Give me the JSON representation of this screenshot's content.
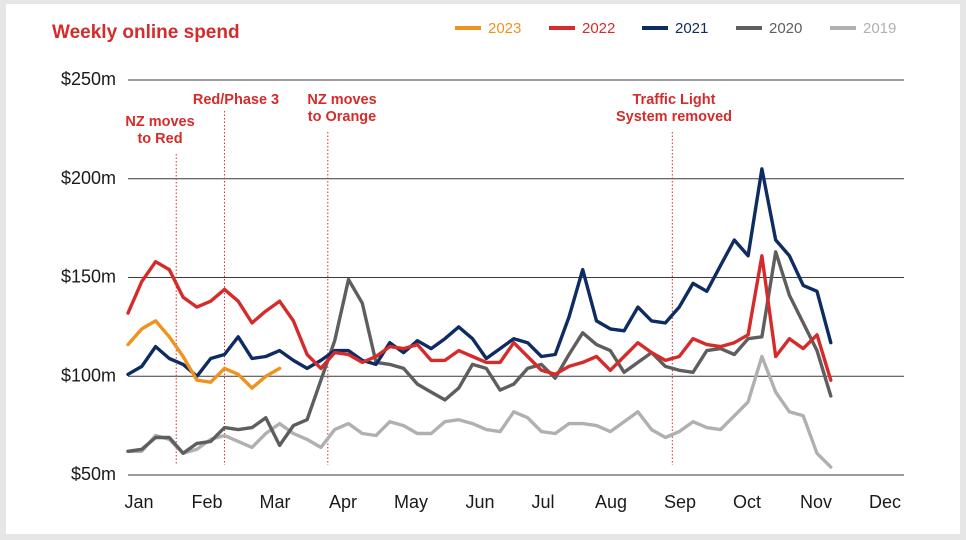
{
  "chart_data": {
    "type": "line",
    "title": "Weekly online spend",
    "ylabel": "",
    "xlabel": "",
    "ylim": [
      50,
      250
    ],
    "yticks": [
      {
        "value": 250,
        "label": "$250m"
      },
      {
        "value": 200,
        "label": "$200m"
      },
      {
        "value": 150,
        "label": "$150m"
      },
      {
        "value": 100,
        "label": "$100m"
      },
      {
        "value": 50,
        "label": "$50m"
      }
    ],
    "xlim": [
      1,
      52
    ],
    "xticks": [
      {
        "week": 1,
        "label": "Jan"
      },
      {
        "week": 6,
        "label": "Feb"
      },
      {
        "week": 11,
        "label": "Mar"
      },
      {
        "week": 16,
        "label": "Apr"
      },
      {
        "week": 21,
        "label": "May"
      },
      {
        "week": 26,
        "label": "Jun"
      },
      {
        "week": 31,
        "label": "Jul"
      },
      {
        "week": 36,
        "label": "Aug"
      },
      {
        "week": 41,
        "label": "Sep"
      },
      {
        "week": 46,
        "label": "Oct"
      },
      {
        "week": 51,
        "label": "Nov"
      },
      {
        "week": 56,
        "label": "Dec"
      }
    ],
    "grid": true,
    "legend_position": "top-right",
    "series": [
      {
        "name": "2023",
        "color": "#f0921e",
        "values": [
          116,
          124,
          128,
          120,
          110,
          98,
          97,
          104,
          101,
          94,
          100,
          104
        ]
      },
      {
        "name": "2022",
        "color": "#d52b2b",
        "values": [
          132,
          148,
          158,
          154,
          140,
          135,
          138,
          144,
          138,
          127,
          133,
          138,
          128,
          111,
          104,
          112,
          111,
          107,
          110,
          115,
          114,
          116,
          108,
          108,
          113,
          110,
          107,
          107,
          117,
          110,
          103,
          101,
          105,
          107,
          110,
          103,
          110,
          117,
          112,
          108,
          110,
          119,
          116,
          115,
          117,
          121,
          161,
          110,
          119,
          114,
          121,
          98
        ]
      },
      {
        "name": "2021",
        "color": "#0f2c62",
        "values": [
          101,
          105,
          115,
          109,
          106,
          100,
          109,
          111,
          120,
          109,
          110,
          113,
          108,
          104,
          108,
          113,
          113,
          108,
          106,
          117,
          112,
          118,
          114,
          119,
          125,
          119,
          109,
          114,
          119,
          117,
          110,
          111,
          130,
          154,
          128,
          124,
          123,
          135,
          128,
          127,
          135,
          147,
          143,
          156,
          169,
          161,
          205,
          169,
          161,
          146,
          143,
          117
        ]
      },
      {
        "name": "2020",
        "color": "#5e5e5e",
        "values": [
          62,
          63,
          69,
          69,
          61,
          66,
          67,
          74,
          73,
          74,
          79,
          65,
          75,
          78,
          98,
          118,
          149,
          137,
          107,
          106,
          104,
          96,
          92,
          88,
          94,
          106,
          104,
          93,
          96,
          104,
          106,
          99,
          111,
          122,
          116,
          113,
          102,
          107,
          112,
          105,
          103,
          102,
          113,
          114,
          111,
          119,
          120,
          163,
          141,
          127,
          113,
          90
        ]
      },
      {
        "name": "2019",
        "color": "#b0b0b0",
        "values": [
          62,
          62,
          70,
          68,
          61,
          63,
          68,
          70,
          67,
          64,
          71,
          76,
          71,
          68,
          64,
          73,
          76,
          71,
          70,
          77,
          75,
          71,
          71,
          77,
          78,
          76,
          73,
          72,
          82,
          79,
          72,
          71,
          76,
          76,
          75,
          72,
          77,
          82,
          73,
          69,
          72,
          77,
          74,
          73,
          80,
          87,
          110,
          92,
          82,
          80,
          61,
          54
        ]
      }
    ],
    "annotations": [
      {
        "lines": [
          "NZ moves",
          "to Red"
        ],
        "week": 4.5
      },
      {
        "lines": [
          "Red/Phase 3"
        ],
        "week": 8
      },
      {
        "lines": [
          "NZ moves",
          "to Orange"
        ],
        "week": 15.5
      },
      {
        "lines": [
          "Traffic Light",
          "System removed"
        ],
        "week": 40.5
      }
    ]
  }
}
